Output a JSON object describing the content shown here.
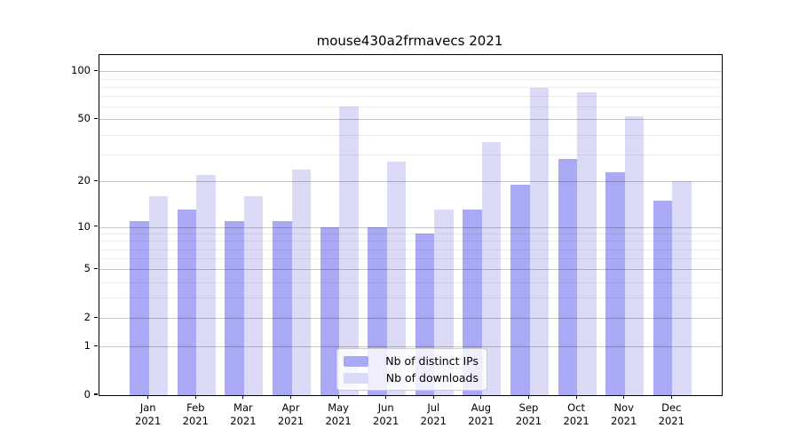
{
  "chart_title": "mouse430a2frmavecs 2021",
  "chart_data": {
    "type": "bar",
    "title": "mouse430a2frmavecs 2021",
    "categories": [
      "Jan 2021",
      "Feb 2021",
      "Mar 2021",
      "Apr 2021",
      "May 2021",
      "Jun 2021",
      "Jul 2021",
      "Aug 2021",
      "Sep 2021",
      "Oct 2021",
      "Nov 2021",
      "Dec 2021"
    ],
    "series": [
      {
        "name": "Nb of distinct IPs",
        "color": "#a9a9f6",
        "values": [
          11,
          13,
          11,
          11,
          10,
          10,
          9,
          13,
          19,
          28,
          23,
          15
        ]
      },
      {
        "name": "Nb of downloads",
        "color": "#dbdbf8",
        "values": [
          16,
          22,
          16,
          24,
          60,
          27,
          13,
          36,
          79,
          74,
          52,
          20
        ]
      }
    ],
    "xlabel": "",
    "ylabel": "",
    "yscale": "log1p",
    "ylim": [
      0,
      126.4
    ],
    "y_major_ticks": [
      0,
      1,
      2,
      5,
      10,
      20,
      50,
      100
    ],
    "y_minor_ticks": [
      3,
      4,
      6,
      7,
      8,
      9,
      30,
      40,
      60,
      70,
      80,
      90
    ],
    "grid": true,
    "legend_position": "lower center"
  },
  "legend": {
    "items": [
      {
        "label": "Nb of distinct IPs",
        "color": "#a9a9f6"
      },
      {
        "label": "Nb of downloads",
        "color": "#dbdbf8"
      }
    ]
  },
  "colors": {
    "distinct_ips": "#a9a9f6",
    "downloads": "#dbdbf8",
    "frame": "#000000",
    "grid_major": "#c8c8c8",
    "grid_minor": "#ededed",
    "background": "#ffffff"
  }
}
